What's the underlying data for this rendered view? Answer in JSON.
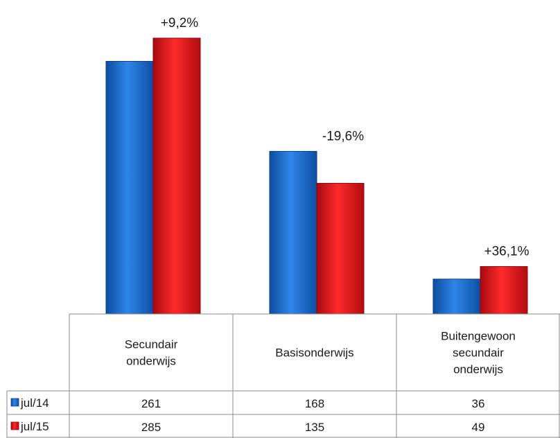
{
  "colors": {
    "jul14": "#1f6fd0",
    "jul15": "#e8121a",
    "grid": "#8a8a8a"
  },
  "chart_data": {
    "type": "bar",
    "categories": [
      [
        "Secundair",
        "onderwijs"
      ],
      [
        "Basisonderwijs"
      ],
      [
        "Buitengewoon",
        "secundair",
        "onderwijs"
      ]
    ],
    "series": [
      {
        "name": "jul/14",
        "values": [
          261,
          168,
          36
        ]
      },
      {
        "name": "jul/15",
        "values": [
          285,
          135,
          49
        ]
      }
    ],
    "annotations": [
      "+9,2%",
      "-19,6%",
      "+36,1%"
    ],
    "ylim": [
      0,
      300
    ],
    "legend": "data-table"
  }
}
